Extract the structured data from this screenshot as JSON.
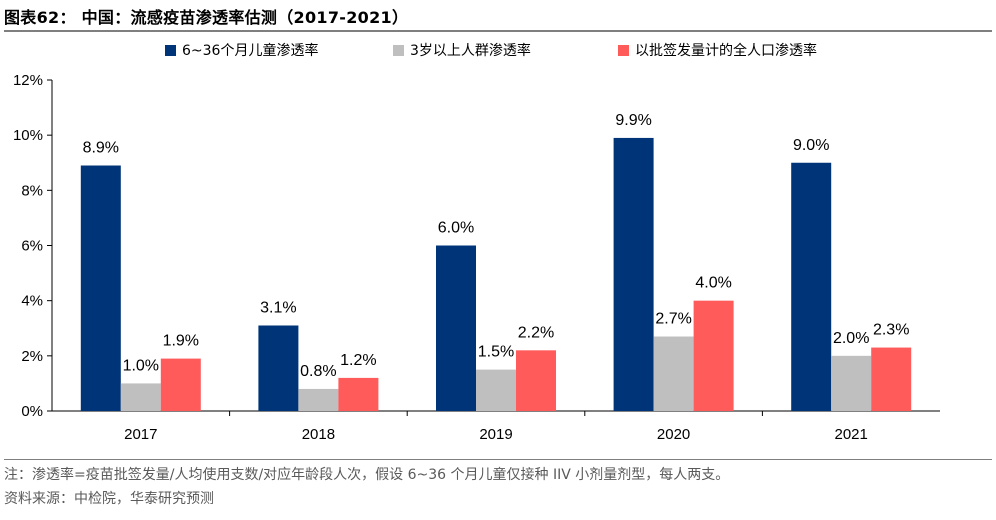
{
  "figure": {
    "title": "图表62： 中国：流感疫苗渗透率估测（2017-2021）",
    "note": "注：渗透率=疫苗批签发量/人均使用支数/对应年龄段人次，假设 6~36 个月儿童仅接种 IIV 小剂量剂型，每人两支。",
    "source": "资料来源：中检院，华泰研究预测"
  },
  "chart_data": {
    "type": "bar",
    "title": "中国：流感疫苗渗透率估测（2017-2021）",
    "categories": [
      "2017",
      "2018",
      "2019",
      "2020",
      "2021"
    ],
    "series": [
      {
        "name": "6~36个月儿童渗透率",
        "color": "#003478",
        "values": [
          8.9,
          3.1,
          6.0,
          9.9,
          9.0
        ],
        "labels": [
          "8.9%",
          "3.1%",
          "6.0%",
          "9.9%",
          "9.0%"
        ]
      },
      {
        "name": "3岁以上人群渗透率",
        "color": "#bfbfbf",
        "values": [
          1.0,
          0.8,
          1.5,
          2.7,
          2.0
        ],
        "labels": [
          "1.0%",
          "0.8%",
          "1.5%",
          "2.7%",
          "2.0%"
        ]
      },
      {
        "name": "以批签发量计的全人口渗透率",
        "color": "#ff5b5b",
        "values": [
          1.9,
          1.2,
          2.2,
          4.0,
          2.3
        ],
        "labels": [
          "1.9%",
          "1.2%",
          "2.2%",
          "4.0%",
          "2.3%"
        ]
      }
    ],
    "ylim": [
      0,
      12
    ],
    "yticks": [
      0,
      2,
      4,
      6,
      8,
      10,
      12
    ],
    "ytick_labels": [
      "0%",
      "2%",
      "4%",
      "6%",
      "8%",
      "10%",
      "12%"
    ],
    "xlabel": "",
    "ylabel": "",
    "legend_position": "top",
    "grid": false
  }
}
